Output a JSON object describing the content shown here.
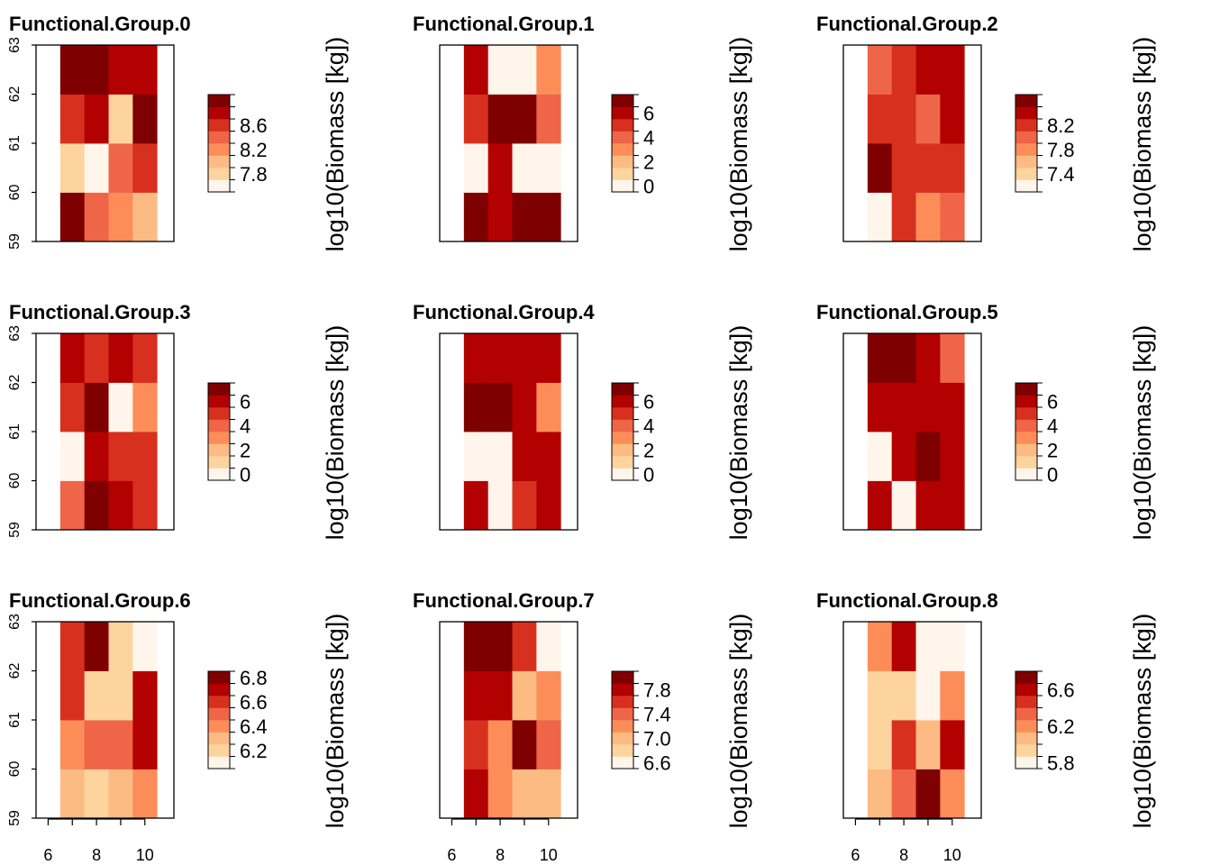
{
  "palette": [
    "#FFF5EB",
    "#FDD49E",
    "#FDBB84",
    "#FC8D59",
    "#EF6548",
    "#D7301F",
    "#B30000",
    "#7F0000"
  ],
  "chart_data": [
    {
      "type": "heatmap",
      "title": "Functional.Group.0",
      "legend_label": "log10(Biomass [kg])",
      "x_ticks": [],
      "y_ticks": [
        "59",
        "60",
        "61",
        "62",
        "63"
      ],
      "x": [
        7,
        8,
        9,
        10
      ],
      "y_bands": [
        [
          59,
          60
        ],
        [
          60,
          61
        ],
        [
          61,
          62
        ],
        [
          62,
          63
        ]
      ],
      "cell_levels": [
        [
          7,
          4,
          3,
          2
        ],
        [
          1,
          0,
          4,
          5
        ],
        [
          5,
          6,
          1,
          7
        ],
        [
          7,
          7,
          6,
          6
        ]
      ],
      "legend_ticks": [
        {
          "label": "7.8",
          "level": 1
        },
        {
          "label": "8.2",
          "level": 3
        },
        {
          "label": "8.6",
          "level": 5
        }
      ]
    },
    {
      "type": "heatmap",
      "title": "Functional.Group.1",
      "legend_label": "log10(Biomass [kg])",
      "x_ticks": [],
      "y_ticks": [],
      "x": [
        7,
        8,
        9,
        10
      ],
      "y_bands": [
        [
          59,
          60
        ],
        [
          60,
          61
        ],
        [
          61,
          62
        ],
        [
          62,
          63
        ]
      ],
      "cell_levels": [
        [
          7,
          6,
          7,
          7
        ],
        [
          0,
          6,
          0,
          0
        ],
        [
          5,
          7,
          7,
          4
        ],
        [
          6,
          0,
          0,
          3
        ]
      ],
      "legend_ticks": [
        {
          "label": "0",
          "level": 0
        },
        {
          "label": "2",
          "level": 2
        },
        {
          "label": "4",
          "level": 4
        },
        {
          "label": "6",
          "level": 6
        }
      ]
    },
    {
      "type": "heatmap",
      "title": "Functional.Group.2",
      "legend_label": "log10(Biomass [kg])",
      "x_ticks": [],
      "y_ticks": [],
      "x": [
        7,
        8,
        9,
        10
      ],
      "y_bands": [
        [
          59,
          60
        ],
        [
          60,
          61
        ],
        [
          61,
          62
        ],
        [
          62,
          63
        ]
      ],
      "cell_levels": [
        [
          0,
          5,
          3,
          4
        ],
        [
          7,
          5,
          5,
          5
        ],
        [
          5,
          5,
          4,
          6
        ],
        [
          4,
          5,
          6,
          6
        ]
      ],
      "legend_ticks": [
        {
          "label": "7.4",
          "level": 1
        },
        {
          "label": "7.8",
          "level": 3
        },
        {
          "label": "8.2",
          "level": 5
        }
      ]
    },
    {
      "type": "heatmap",
      "title": "Functional.Group.3",
      "legend_label": "log10(Biomass [kg])",
      "x_ticks": [],
      "y_ticks": [
        "59",
        "60",
        "61",
        "62",
        "63"
      ],
      "x": [
        7,
        8,
        9,
        10
      ],
      "y_bands": [
        [
          59,
          60
        ],
        [
          60,
          61
        ],
        [
          61,
          62
        ],
        [
          62,
          63
        ]
      ],
      "cell_levels": [
        [
          4,
          7,
          6,
          5
        ],
        [
          0,
          6,
          5,
          5
        ],
        [
          5,
          7,
          0,
          3
        ],
        [
          6,
          5,
          6,
          5
        ]
      ],
      "legend_ticks": [
        {
          "label": "0",
          "level": 0
        },
        {
          "label": "2",
          "level": 2
        },
        {
          "label": "4",
          "level": 4
        },
        {
          "label": "6",
          "level": 6
        }
      ]
    },
    {
      "type": "heatmap",
      "title": "Functional.Group.4",
      "legend_label": "log10(Biomass [kg])",
      "x_ticks": [],
      "y_ticks": [],
      "x": [
        7,
        8,
        9,
        10
      ],
      "y_bands": [
        [
          59,
          60
        ],
        [
          60,
          61
        ],
        [
          61,
          62
        ],
        [
          62,
          63
        ]
      ],
      "cell_levels": [
        [
          6,
          0,
          5,
          6
        ],
        [
          0,
          0,
          6,
          6
        ],
        [
          7,
          7,
          6,
          3
        ],
        [
          6,
          6,
          6,
          6
        ]
      ],
      "legend_ticks": [
        {
          "label": "0",
          "level": 0
        },
        {
          "label": "2",
          "level": 2
        },
        {
          "label": "4",
          "level": 4
        },
        {
          "label": "6",
          "level": 6
        }
      ]
    },
    {
      "type": "heatmap",
      "title": "Functional.Group.5",
      "legend_label": "log10(Biomass [kg])",
      "x_ticks": [],
      "y_ticks": [],
      "x": [
        7,
        8,
        9,
        10
      ],
      "y_bands": [
        [
          59,
          60
        ],
        [
          60,
          61
        ],
        [
          61,
          62
        ],
        [
          62,
          63
        ]
      ],
      "cell_levels": [
        [
          6,
          0,
          6,
          6
        ],
        [
          0,
          6,
          7,
          6
        ],
        [
          6,
          6,
          6,
          6
        ],
        [
          7,
          7,
          6,
          4
        ]
      ],
      "legend_ticks": [
        {
          "label": "0",
          "level": 0
        },
        {
          "label": "2",
          "level": 2
        },
        {
          "label": "4",
          "level": 4
        },
        {
          "label": "6",
          "level": 6
        }
      ]
    },
    {
      "type": "heatmap",
      "title": "Functional.Group.6",
      "legend_label": "log10(Biomass [kg])",
      "x_ticks": [
        "6",
        "8",
        "10"
      ],
      "y_ticks": [
        "59",
        "60",
        "61",
        "62",
        "63"
      ],
      "x": [
        7,
        8,
        9,
        10
      ],
      "y_bands": [
        [
          59,
          60
        ],
        [
          60,
          61
        ],
        [
          61,
          62
        ],
        [
          62,
          63
        ]
      ],
      "cell_levels": [
        [
          2,
          1,
          2,
          3
        ],
        [
          3,
          4,
          4,
          6
        ],
        [
          5,
          1,
          1,
          6
        ],
        [
          5,
          7,
          1,
          0
        ]
      ],
      "legend_ticks": [
        {
          "label": "6.2",
          "level": 1
        },
        {
          "label": "6.4",
          "level": 3
        },
        {
          "label": "6.6",
          "level": 5
        },
        {
          "label": "6.8",
          "level": 7
        }
      ]
    },
    {
      "type": "heatmap",
      "title": "Functional.Group.7",
      "legend_label": "log10(Biomass [kg])",
      "x_ticks": [
        "6",
        "8",
        "10"
      ],
      "y_ticks": [],
      "x": [
        7,
        8,
        9,
        10
      ],
      "y_bands": [
        [
          59,
          60
        ],
        [
          60,
          61
        ],
        [
          61,
          62
        ],
        [
          62,
          63
        ]
      ],
      "cell_levels": [
        [
          6,
          3,
          2,
          2
        ],
        [
          5,
          3,
          7,
          4
        ],
        [
          6,
          6,
          2,
          3
        ],
        [
          7,
          7,
          5,
          0
        ]
      ],
      "legend_ticks": [
        {
          "label": "6.6",
          "level": 0
        },
        {
          "label": "7.0",
          "level": 2
        },
        {
          "label": "7.4",
          "level": 4
        },
        {
          "label": "7.8",
          "level": 6
        }
      ]
    },
    {
      "type": "heatmap",
      "title": "Functional.Group.8",
      "legend_label": "log10(Biomass [kg])",
      "x_ticks": [
        "6",
        "8",
        "10"
      ],
      "y_ticks": [],
      "x": [
        7,
        8,
        9,
        10
      ],
      "y_bands": [
        [
          59,
          60
        ],
        [
          60,
          61
        ],
        [
          61,
          62
        ],
        [
          62,
          63
        ]
      ],
      "cell_levels": [
        [
          2,
          4,
          7,
          3
        ],
        [
          1,
          5,
          2,
          6
        ],
        [
          1,
          1,
          0,
          3
        ],
        [
          3,
          6,
          0,
          0
        ]
      ],
      "legend_ticks": [
        {
          "label": "5.8",
          "level": 0
        },
        {
          "label": "6.2",
          "level": 3
        },
        {
          "label": "6.6",
          "level": 6
        }
      ]
    }
  ]
}
